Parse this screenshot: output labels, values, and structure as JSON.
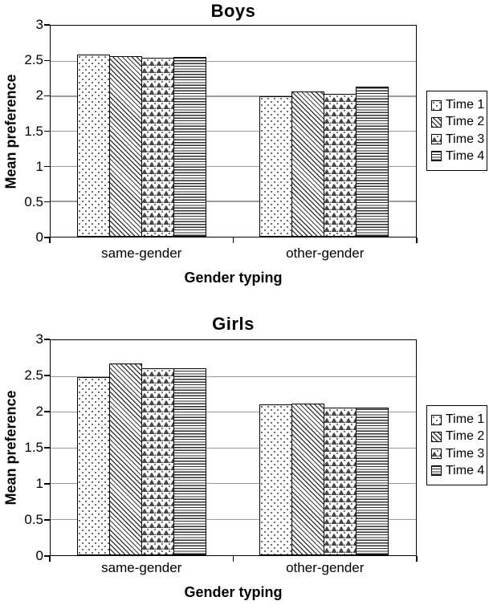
{
  "page": {
    "background": "#ffffff"
  },
  "chart_data": [
    {
      "type": "bar",
      "title": "Boys",
      "xlabel": "Gender typing",
      "ylabel": "Mean preference",
      "categories": [
        "same-gender",
        "other-gender"
      ],
      "series": [
        {
          "name": "Time 1",
          "pattern": "dots",
          "values": [
            2.6,
            2.0
          ]
        },
        {
          "name": "Time 2",
          "pattern": "diagonal-hatch",
          "values": [
            2.58,
            2.07
          ]
        },
        {
          "name": "Time 3",
          "pattern": "scale",
          "values": [
            2.55,
            2.04
          ]
        },
        {
          "name": "Time 4",
          "pattern": "horizontal-lines",
          "values": [
            2.57,
            2.14
          ]
        }
      ],
      "ylim": [
        0,
        3
      ],
      "ytick_values": [
        0,
        0.5,
        1,
        1.5,
        2,
        2.5,
        3
      ],
      "ytick_labels": [
        "0",
        "0.5",
        "1",
        "1.5",
        "2",
        "2.5",
        "3"
      ],
      "grid": true,
      "legend_position": "right",
      "colors": {
        "bar_fill": "#ffffff",
        "bar_border": "#000000",
        "gridline": "#9b9b9b",
        "pattern_ink": "#474747"
      }
    },
    {
      "type": "bar",
      "title": "Girls",
      "xlabel": "Gender typing",
      "ylabel": "Mean preference",
      "categories": [
        "same-gender",
        "other-gender"
      ],
      "series": [
        {
          "name": "Time 1",
          "pattern": "dots",
          "values": [
            2.5,
            2.11
          ]
        },
        {
          "name": "Time 2",
          "pattern": "diagonal-hatch",
          "values": [
            2.68,
            2.12
          ]
        },
        {
          "name": "Time 3",
          "pattern": "scale",
          "values": [
            2.62,
            2.07
          ]
        },
        {
          "name": "Time 4",
          "pattern": "horizontal-lines",
          "values": [
            2.62,
            2.07
          ]
        }
      ],
      "ylim": [
        0,
        3
      ],
      "ytick_values": [
        0,
        0.5,
        1,
        1.5,
        2,
        2.5,
        3
      ],
      "ytick_labels": [
        "0",
        "0.5",
        "1",
        "1.5",
        "2",
        "2.5",
        "3"
      ],
      "grid": true,
      "legend_position": "right",
      "colors": {
        "bar_fill": "#ffffff",
        "bar_border": "#000000",
        "gridline": "#9b9b9b",
        "pattern_ink": "#474747"
      }
    }
  ]
}
